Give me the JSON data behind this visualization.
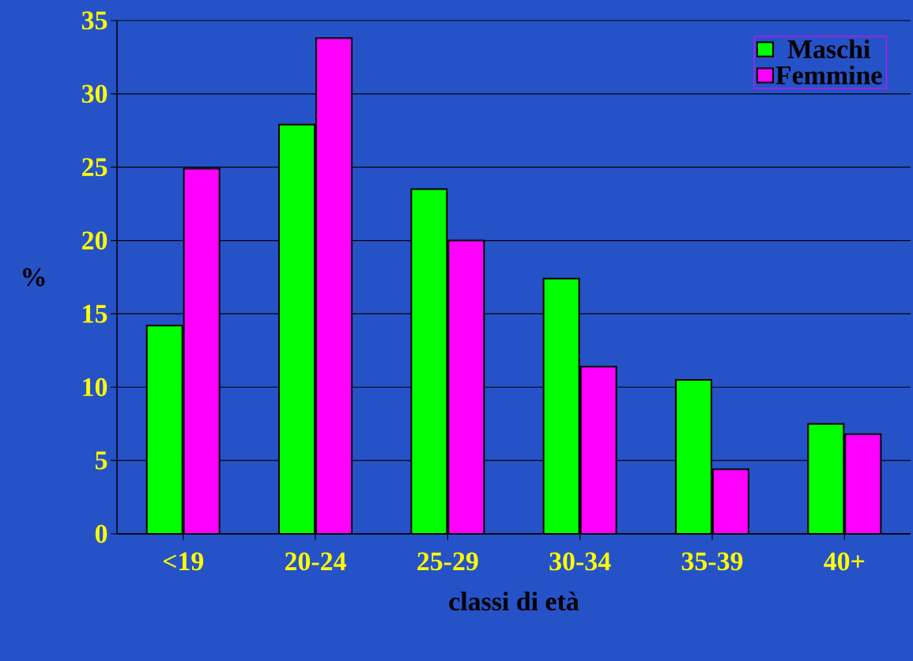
{
  "chart_data": {
    "type": "bar",
    "xlabel": "classi di età",
    "ylabel": "%",
    "categories": [
      "<19",
      "20-24",
      "25-29",
      "30-34",
      "35-39",
      "40+"
    ],
    "series": [
      {
        "name": "Maschi",
        "color": "#00ff00",
        "values": [
          14.2,
          27.9,
          23.5,
          17.4,
          10.5,
          7.5
        ]
      },
      {
        "name": "Femmine",
        "color": "#ff00ff",
        "values": [
          24.9,
          33.8,
          20.0,
          11.4,
          4.4,
          6.8
        ]
      }
    ],
    "ylim": [
      0,
      35
    ],
    "yticks": [
      0,
      5,
      10,
      15,
      20,
      25,
      30,
      35
    ],
    "grid": "y",
    "legend": "top right"
  }
}
